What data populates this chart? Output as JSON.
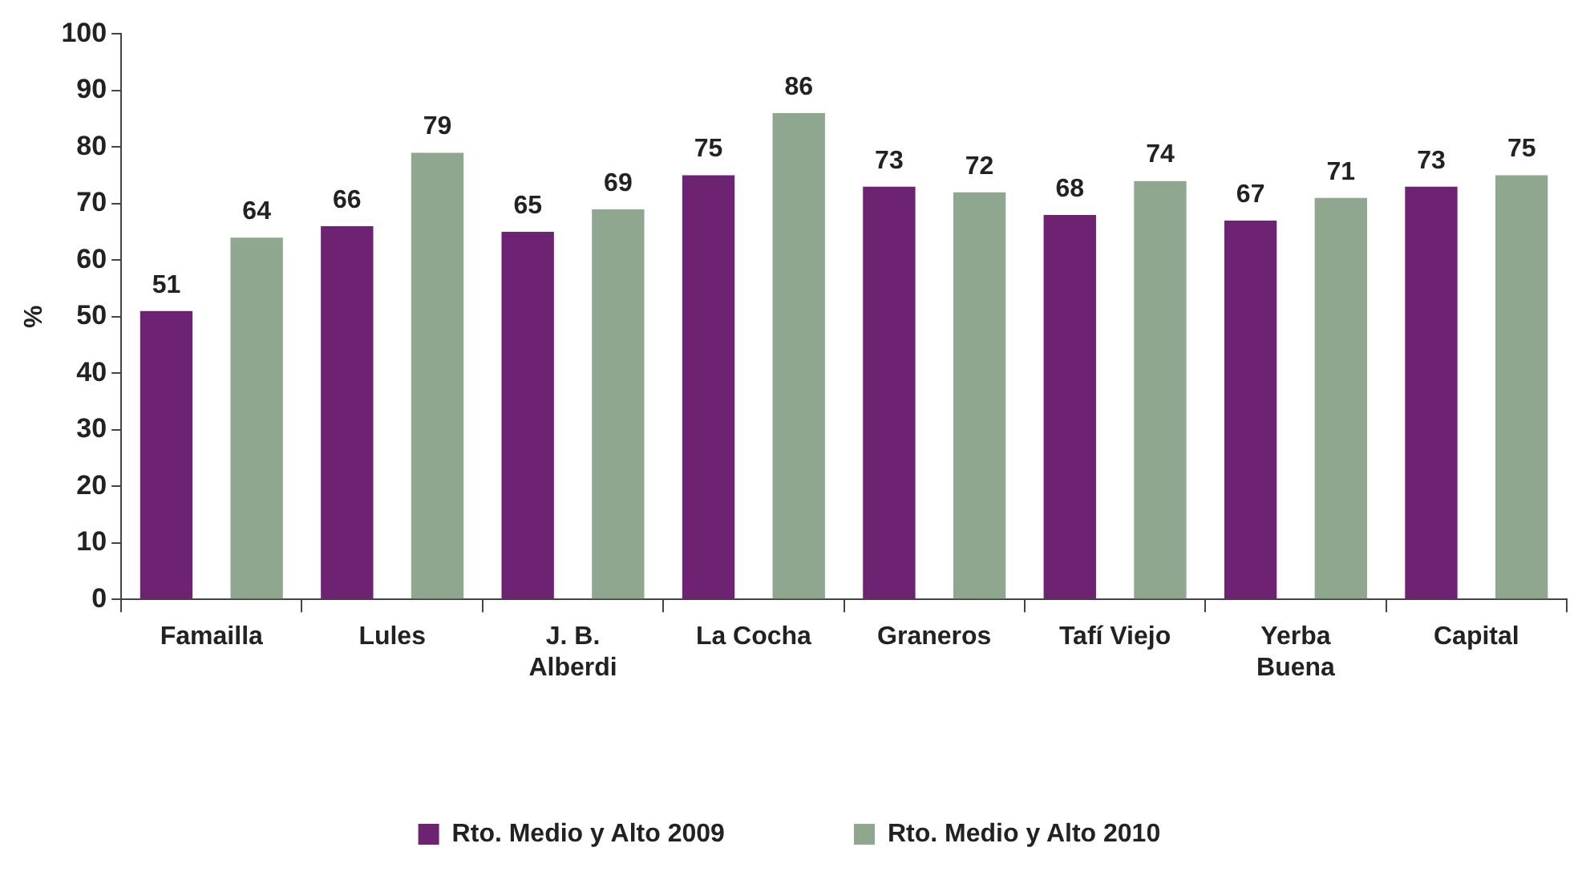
{
  "chart_data": {
    "type": "bar",
    "ylabel": "%",
    "categories": [
      "Famailla",
      "Lules",
      "J. B. Alberdi",
      "La Cocha",
      "Graneros",
      "Tafí Viejo",
      "Yerba Buena",
      "Capital"
    ],
    "series": [
      {
        "name": "Rto. Medio y Alto 2009",
        "color": "#6e2272",
        "values": [
          51,
          66,
          65,
          75,
          73,
          68,
          67,
          73
        ]
      },
      {
        "name": "Rto. Medio y Alto 2010",
        "color": "#8fa68f",
        "values": [
          64,
          79,
          69,
          86,
          72,
          74,
          71,
          75
        ]
      }
    ],
    "ylim": [
      0,
      100
    ],
    "yticks": [
      0,
      10,
      20,
      30,
      40,
      50,
      60,
      70,
      80,
      90,
      100
    ],
    "grid": false,
    "legend": "bottom",
    "data_labels": true
  }
}
